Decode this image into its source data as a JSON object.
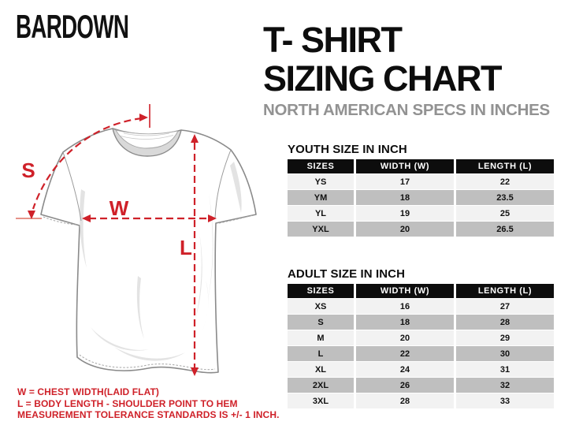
{
  "brand": {
    "name": "BARDOWN"
  },
  "header": {
    "title_line1": "T- SHIRT",
    "title_line2": "SIZING CHART",
    "subtitle": "NORTH AMERICAN SPECS IN INCHES"
  },
  "diagram": {
    "shoulder_label": "S",
    "width_label": "W",
    "length_label": "L"
  },
  "tables": {
    "youth": {
      "title": "YOUTH SIZE IN INCH",
      "columns": [
        "SIZES",
        "WIDTH (W)",
        "LENGTH (L)"
      ],
      "rows": [
        [
          "YS",
          "17",
          "22"
        ],
        [
          "YM",
          "18",
          "23.5"
        ],
        [
          "YL",
          "19",
          "25"
        ],
        [
          "YXL",
          "20",
          "26.5"
        ]
      ]
    },
    "adult": {
      "title": "ADULT SIZE IN INCH",
      "columns": [
        "SIZES",
        "WIDTH (W)",
        "LENGTH (L)"
      ],
      "rows": [
        [
          "XS",
          "16",
          "27"
        ],
        [
          "S",
          "18",
          "28"
        ],
        [
          "M",
          "20",
          "29"
        ],
        [
          "L",
          "22",
          "30"
        ],
        [
          "XL",
          "24",
          "31"
        ],
        [
          "2XL",
          "26",
          "32"
        ],
        [
          "3XL",
          "28",
          "33"
        ]
      ]
    }
  },
  "notes": {
    "line1": "W = CHEST WIDTH(LAID FLAT)",
    "line2": "L = BODY LENGTH - SHOULDER POINT TO HEM",
    "line3": "MEASUREMENT TOLERANCE STANDARDS IS +/- 1 INCH."
  },
  "colors": {
    "ink": "#0d0d0d",
    "accent_red": "#cf2129",
    "soft_red": "#dd6e62",
    "subtitle_gray": "#929292",
    "table_header_bg": "#0d0d0d",
    "row_light": "#f2f2f2",
    "row_gray": "#bfbfbf",
    "outline_gray": "#8a8a8a",
    "wrinkle_gray": "#e3e3e3",
    "collar_gray": "#d9d9d9"
  }
}
